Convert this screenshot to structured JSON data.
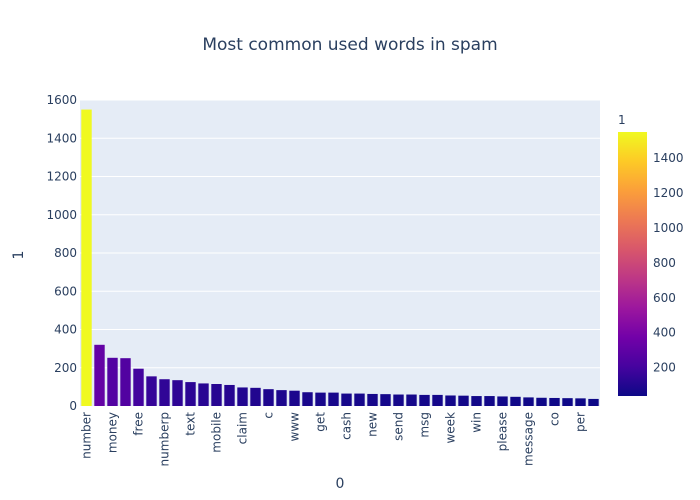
{
  "chart_data": {
    "type": "bar",
    "title": "Most common used words in spam",
    "xlabel": "0",
    "ylabel": "1",
    "ylim": [
      0,
      1600
    ],
    "yticks": [
      0,
      200,
      400,
      600,
      800,
      1000,
      1200,
      1400,
      1600
    ],
    "colorbar": {
      "title": "1",
      "ticks": [
        200,
        400,
        600,
        800,
        1000,
        1200,
        1400
      ],
      "colorscale": "plasma",
      "colors": [
        "#0d0887",
        "#46039f",
        "#7201a8",
        "#9c179e",
        "#bd3786",
        "#d8576b",
        "#ed7953",
        "#fb9f3a",
        "#fdca26",
        "#f0f921"
      ]
    },
    "grid": true,
    "background": "#e5ecf6",
    "categories": [
      "number",
      "",
      "money",
      "",
      "free",
      "",
      "numberp",
      "",
      "text",
      "",
      "mobile",
      "",
      "claim",
      "",
      "c",
      "",
      "www",
      "",
      "get",
      "",
      "cash",
      "",
      "new",
      "",
      "send",
      "",
      "msg",
      "",
      "week",
      "",
      "win",
      "",
      "please",
      "",
      "message",
      "",
      "co",
      "",
      "per",
      ""
    ],
    "values": [
      1550,
      320,
      252,
      250,
      195,
      155,
      140,
      135,
      125,
      118,
      115,
      110,
      97,
      95,
      88,
      83,
      80,
      72,
      70,
      70,
      65,
      65,
      63,
      62,
      60,
      60,
      58,
      58,
      55,
      54,
      52,
      52,
      50,
      48,
      45,
      43,
      42,
      41,
      40,
      37
    ]
  }
}
